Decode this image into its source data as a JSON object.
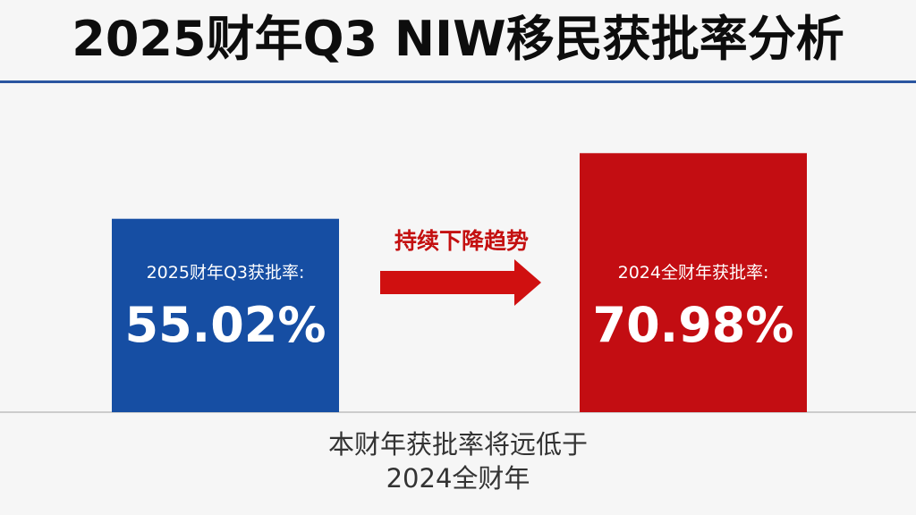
{
  "title": "2025财年Q3 NIW移民获批率分析",
  "note": {
    "line1": "本财年获批率将远低于",
    "line2": "2024全财年"
  },
  "arrow": {
    "label": "持续下降趋势"
  },
  "colors": {
    "bar_2025": "#164ea3",
    "bar_2024": "#c30d12",
    "arrow": "#d01010",
    "baseline": "#bdbdbd",
    "rule": "#2a55a0"
  },
  "chart_data": {
    "type": "bar",
    "categories": [
      "2025财年Q3获批率:",
      "2024全财年获批率:"
    ],
    "values": [
      55.02,
      70.98
    ],
    "value_labels": [
      "55.02%",
      "70.98%"
    ],
    "ylim": [
      0,
      100
    ],
    "grid": false,
    "legend": "none"
  }
}
